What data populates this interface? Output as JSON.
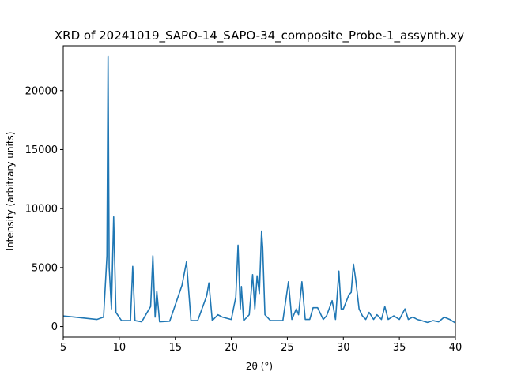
{
  "chart_data": {
    "type": "line",
    "title": "XRD of 20241019_SAPO-14_SAPO-34_composite_Probe-1_assynth.xy",
    "xlabel": "2θ (°)",
    "ylabel": "Intensity (arbitrary units)",
    "xlim": [
      5,
      40
    ],
    "ylim": [
      -900,
      23800
    ],
    "xticks": [
      5,
      10,
      15,
      20,
      25,
      30,
      35,
      40
    ],
    "yticks": [
      0,
      5000,
      10000,
      15000,
      20000
    ],
    "grid": false,
    "legend": "none",
    "series": [
      {
        "color": "#1f77b4",
        "x": [
          5.0,
          6.0,
          7.0,
          8.0,
          8.6,
          8.9,
          9.0,
          9.1,
          9.3,
          9.5,
          9.7,
          10.2,
          11.0,
          11.2,
          11.4,
          12.0,
          12.8,
          13.0,
          13.2,
          13.35,
          13.6,
          14.5,
          15.6,
          16.0,
          16.4,
          17.0,
          17.8,
          18.0,
          18.3,
          18.8,
          19.2,
          20.0,
          20.4,
          20.6,
          20.8,
          20.9,
          21.1,
          21.6,
          21.9,
          22.1,
          22.3,
          22.5,
          22.7,
          22.8,
          23.0,
          23.5,
          24.0,
          24.6,
          25.1,
          25.4,
          25.8,
          26.0,
          26.3,
          26.6,
          27.0,
          27.3,
          27.7,
          28.2,
          28.5,
          29.0,
          29.3,
          29.6,
          29.8,
          30.0,
          30.5,
          30.7,
          30.9,
          31.1,
          31.4,
          31.7,
          32.0,
          32.3,
          32.7,
          33.0,
          33.4,
          33.7,
          34.0,
          34.5,
          35.0,
          35.5,
          35.8,
          36.2,
          36.6,
          37.0,
          37.5,
          38.0,
          38.5,
          39.0,
          39.5,
          40.0
        ],
        "values": [
          900,
          800,
          700,
          600,
          800,
          6000,
          22900,
          5000,
          1500,
          9300,
          1200,
          500,
          500,
          5100,
          500,
          400,
          1700,
          6000,
          800,
          3000,
          400,
          450,
          3500,
          5500,
          500,
          500,
          2600,
          3700,
          500,
          1000,
          800,
          600,
          2500,
          6900,
          1500,
          3400,
          500,
          1000,
          4400,
          1500,
          4300,
          2800,
          8100,
          6700,
          1000,
          500,
          500,
          500,
          3800,
          600,
          1500,
          1000,
          3800,
          600,
          600,
          1600,
          1600,
          600,
          900,
          2200,
          600,
          4700,
          1500,
          1500,
          2700,
          2900,
          5300,
          4000,
          1500,
          900,
          600,
          1200,
          600,
          1000,
          600,
          1700,
          600,
          900,
          600,
          1500,
          600,
          800,
          600,
          500,
          350,
          500,
          400,
          800,
          600,
          300
        ]
      }
    ]
  }
}
